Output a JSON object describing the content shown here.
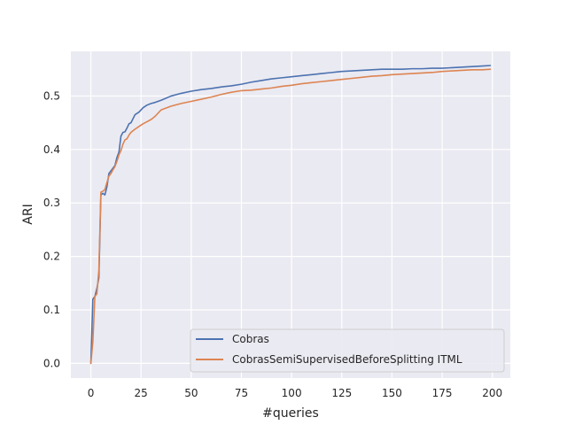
{
  "chart_data": {
    "type": "line",
    "xlabel": "#queries",
    "ylabel": "ARI",
    "xlim": [
      -9.95,
      208.95
    ],
    "ylim": [
      -0.0275,
      0.5835
    ],
    "xticks": [
      0,
      25,
      50,
      75,
      100,
      125,
      150,
      175,
      200
    ],
    "yticks": [
      0.0,
      0.1,
      0.2,
      0.3,
      0.4,
      0.5
    ],
    "ytick_labels": [
      "0.0",
      "0.1",
      "0.2",
      "0.3",
      "0.4",
      "0.5"
    ],
    "grid": true,
    "legend_position": "lower-right",
    "series": [
      {
        "name": "Cobras",
        "color": "#4c72b0",
        "x": [
          0,
          1,
          2,
          3,
          4,
          5,
          6,
          7,
          8,
          9,
          10,
          11,
          12,
          13,
          14,
          15,
          16,
          17,
          18,
          19,
          20,
          22,
          24,
          26,
          28,
          30,
          32,
          35,
          40,
          45,
          50,
          55,
          60,
          65,
          70,
          75,
          80,
          85,
          90,
          95,
          100,
          105,
          110,
          115,
          120,
          125,
          130,
          135,
          140,
          145,
          150,
          155,
          160,
          165,
          170,
          175,
          180,
          185,
          190,
          195,
          199
        ],
        "y": [
          0.0,
          0.12,
          0.125,
          0.14,
          0.16,
          0.315,
          0.318,
          0.315,
          0.33,
          0.355,
          0.36,
          0.365,
          0.37,
          0.385,
          0.395,
          0.425,
          0.432,
          0.433,
          0.44,
          0.448,
          0.45,
          0.465,
          0.47,
          0.478,
          0.483,
          0.486,
          0.488,
          0.492,
          0.5,
          0.505,
          0.509,
          0.512,
          0.514,
          0.517,
          0.519,
          0.522,
          0.526,
          0.529,
          0.532,
          0.534,
          0.536,
          0.538,
          0.54,
          0.542,
          0.544,
          0.546,
          0.547,
          0.548,
          0.549,
          0.55,
          0.55,
          0.55,
          0.551,
          0.551,
          0.552,
          0.552,
          0.553,
          0.554,
          0.555,
          0.556,
          0.557
        ]
      },
      {
        "name": "CobrasSemiSupervisedBeforeSplitting ITML",
        "color": "#dd8452",
        "x": [
          0,
          1,
          2,
          3,
          4,
          5,
          6,
          7,
          8,
          9,
          10,
          11,
          12,
          13,
          14,
          15,
          16,
          17,
          18,
          19,
          20,
          22,
          24,
          26,
          28,
          30,
          32,
          35,
          40,
          45,
          50,
          55,
          60,
          65,
          70,
          75,
          80,
          85,
          90,
          95,
          100,
          105,
          110,
          115,
          120,
          125,
          130,
          135,
          140,
          145,
          150,
          155,
          160,
          165,
          170,
          175,
          180,
          185,
          190,
          195,
          199
        ],
        "y": [
          0.0,
          0.04,
          0.125,
          0.13,
          0.175,
          0.32,
          0.322,
          0.325,
          0.338,
          0.35,
          0.355,
          0.362,
          0.368,
          0.378,
          0.39,
          0.398,
          0.41,
          0.418,
          0.42,
          0.427,
          0.432,
          0.438,
          0.443,
          0.448,
          0.452,
          0.456,
          0.462,
          0.474,
          0.481,
          0.486,
          0.49,
          0.494,
          0.498,
          0.503,
          0.507,
          0.51,
          0.511,
          0.513,
          0.515,
          0.518,
          0.52,
          0.523,
          0.525,
          0.527,
          0.529,
          0.531,
          0.533,
          0.535,
          0.537,
          0.538,
          0.54,
          0.541,
          0.542,
          0.543,
          0.544,
          0.546,
          0.547,
          0.548,
          0.549,
          0.549,
          0.55
        ]
      }
    ]
  }
}
